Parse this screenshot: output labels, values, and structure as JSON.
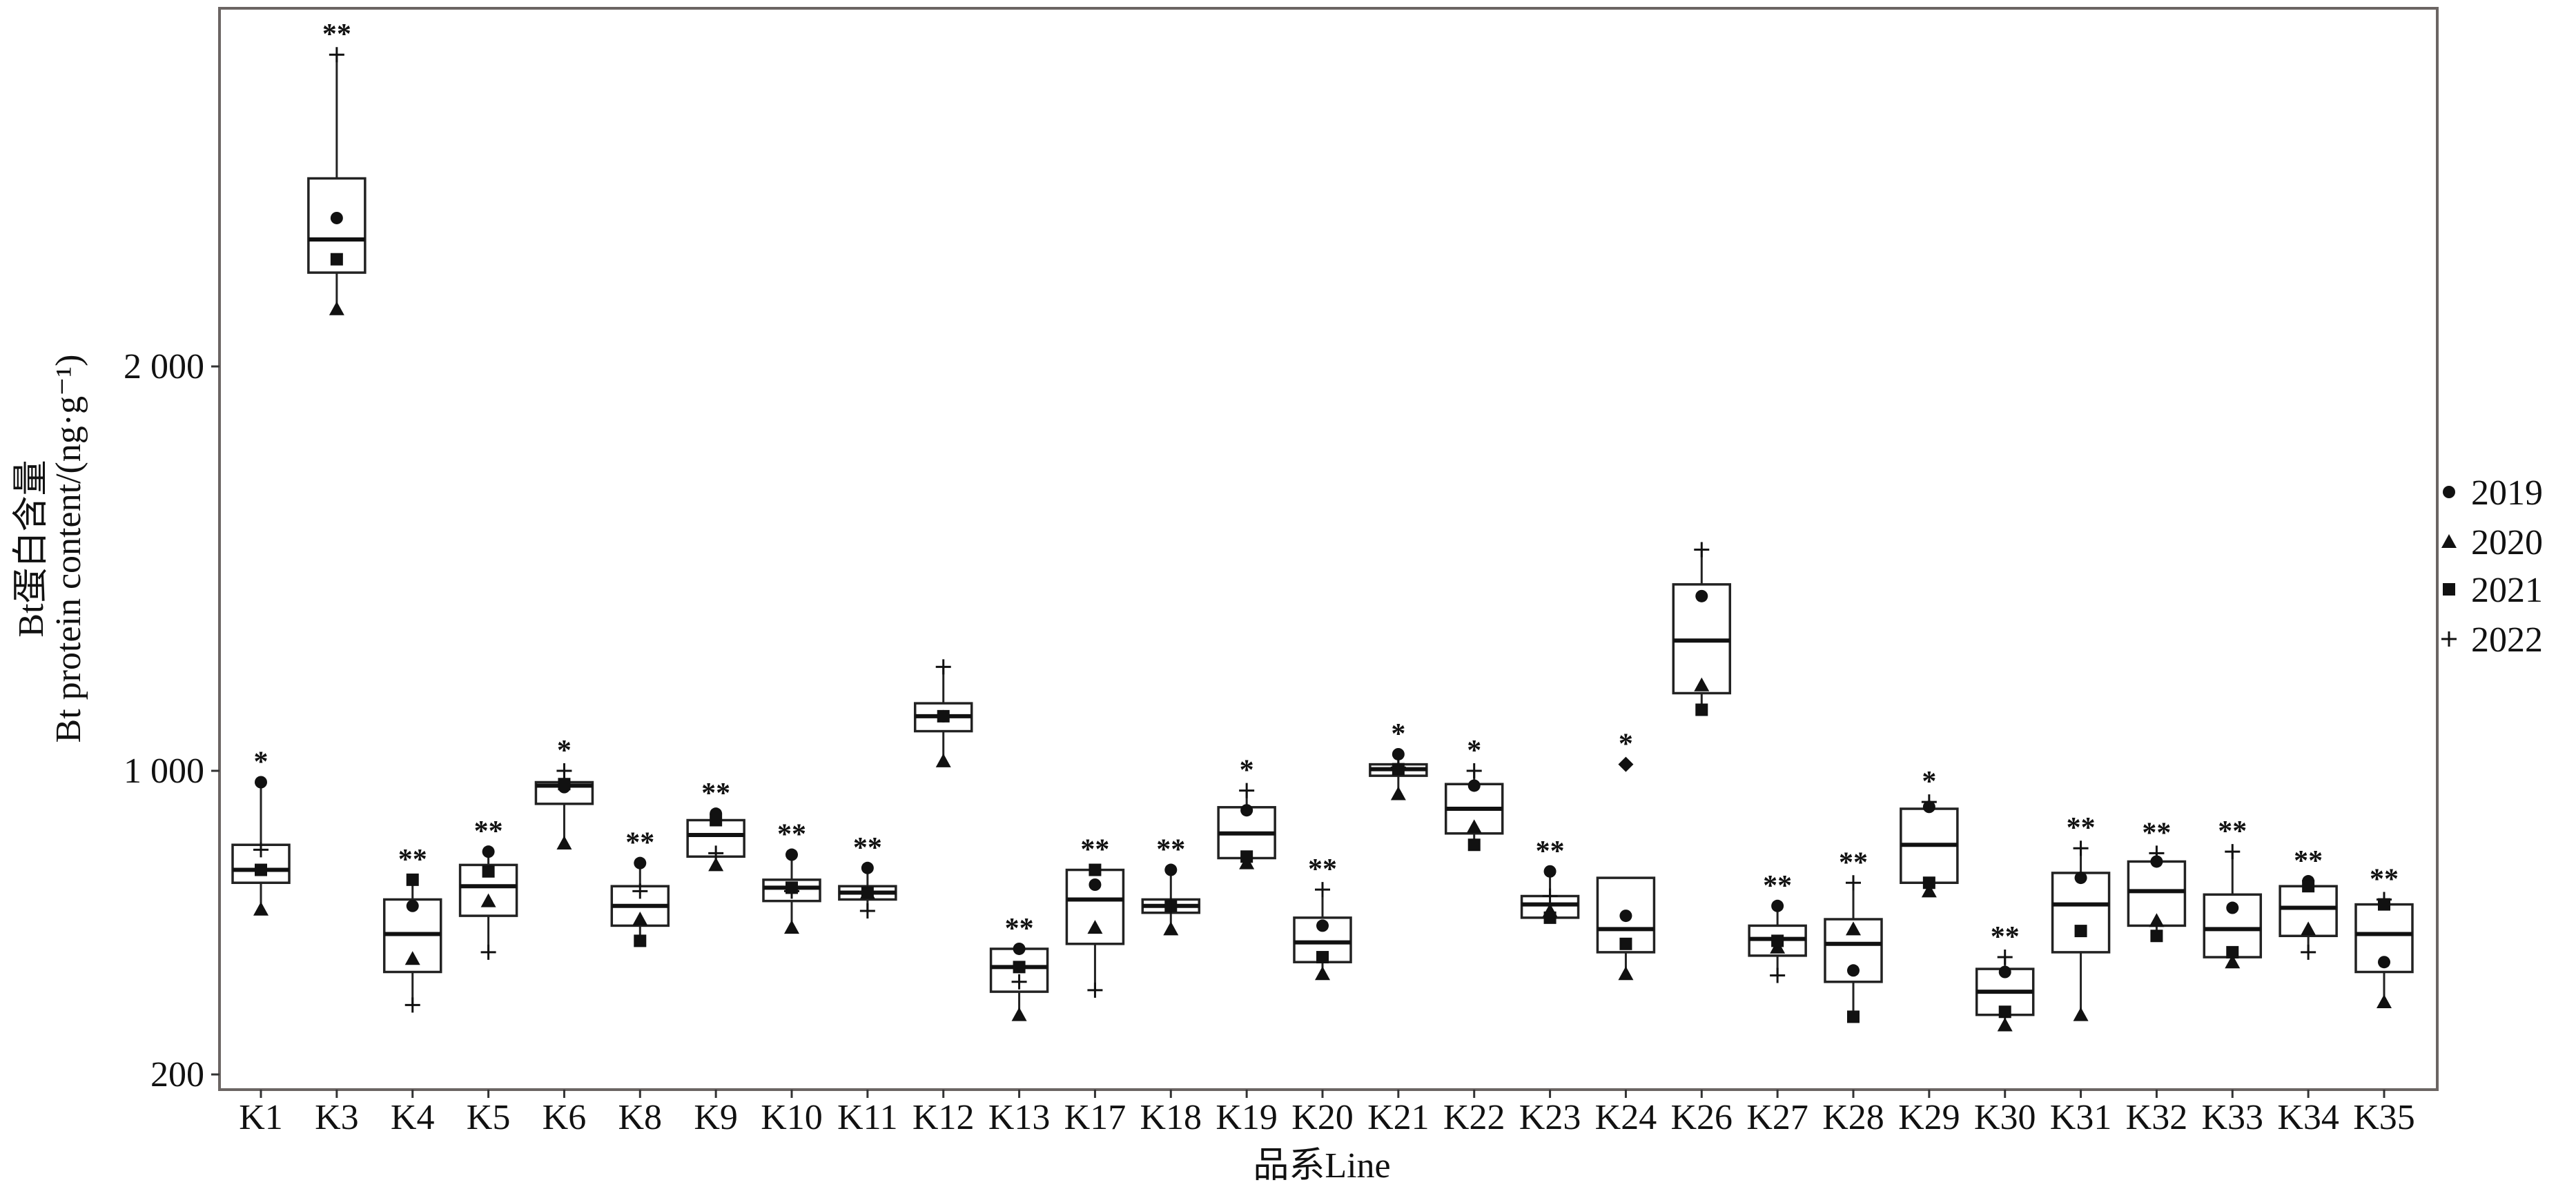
{
  "chart_data": {
    "type": "box",
    "xlabel": "品系Line",
    "ylabel_cn": "Bt蛋白含量",
    "ylabel_en": "Bt protein content/(ng·g⁻¹)",
    "yticks": [
      200,
      1000,
      2000
    ],
    "ytick_labels": [
      "200",
      "1 000",
      "2 000"
    ],
    "ylim": [
      160,
      2880
    ],
    "grid": false,
    "legend_placement": "right",
    "legend": [
      {
        "name": "2019",
        "shape": "circle"
      },
      {
        "name": "2020",
        "shape": "triangle"
      },
      {
        "name": "2021",
        "shape": "square"
      },
      {
        "name": "2022",
        "shape": "plus"
      }
    ],
    "lines": [
      {
        "name": "K1",
        "sig": "*",
        "box": [
          705,
          739,
          805
        ],
        "points": {
          "2019": 970,
          "2020": 635,
          "2021": 739,
          "2022": 792
        }
      },
      {
        "name": "K3",
        "sig": "**",
        "box": [
          2232,
          2314,
          2465
        ],
        "points": {
          "2019": 2367,
          "2020": 2142,
          "2021": 2265,
          "2022": 2771
        }
      },
      {
        "name": "K4",
        "sig": "**",
        "box": [
          470,
          570,
          661
        ],
        "points": {
          "2019": 644,
          "2020": 505,
          "2021": 713,
          "2022": 383
        }
      },
      {
        "name": "K5",
        "sig": "**",
        "box": [
          618,
          696,
          752
        ],
        "points": {
          "2019": 787,
          "2020": 657,
          "2021": 735,
          "2022": 522
        }
      },
      {
        "name": "K6",
        "sig": "*",
        "box": [
          913,
          961,
          970
        ],
        "points": {
          "2019": 957,
          "2020": 809,
          "2021": 965,
          "2022": 1000
        }
      },
      {
        "name": "K8",
        "sig": "**",
        "box": [
          592,
          644,
          696
        ],
        "points": {
          "2019": 757,
          "2020": 609,
          "2021": 552,
          "2022": 683
        }
      },
      {
        "name": "K9",
        "sig": "**",
        "box": [
          774,
          831,
          870
        ],
        "points": {
          "2019": 887,
          "2020": 752,
          "2021": 870,
          "2022": 783
        }
      },
      {
        "name": "K10",
        "sig": "**",
        "box": [
          657,
          692,
          713
        ],
        "points": {
          "2019": 779,
          "2020": 587,
          "2021": 692,
          "2022": 683
        }
      },
      {
        "name": "K11",
        "sig": "**",
        "box": [
          661,
          679,
          696
        ],
        "points": {
          "2019": 744,
          "2020": 679,
          "2021": 679,
          "2022": 631
        }
      },
      {
        "name": "K12",
        "sig": "",
        "box": [
          1098,
          1135,
          1167
        ],
        "points": {
          "2019": 1135,
          "2020": 1024,
          "2021": 1135,
          "2022": 1257
        }
      },
      {
        "name": "K13",
        "sig": "**",
        "box": [
          418,
          483,
          531
        ],
        "points": {
          "2019": 531,
          "2020": 357,
          "2021": 483,
          "2022": 444
        }
      },
      {
        "name": "K17",
        "sig": "**",
        "box": [
          544,
          661,
          739
        ],
        "points": {
          "2019": 700,
          "2020": 587,
          "2021": 739,
          "2022": 422
        }
      },
      {
        "name": "K18",
        "sig": "**",
        "box": [
          626,
          644,
          661
        ],
        "points": {
          "2019": 739,
          "2020": 583,
          "2021": 644,
          "2022": 644
        }
      },
      {
        "name": "K19",
        "sig": "*",
        "box": [
          770,
          835,
          904
        ],
        "points": {
          "2019": 896,
          "2020": 757,
          "2021": 774,
          "2022": 948
        }
      },
      {
        "name": "K20",
        "sig": "**",
        "box": [
          496,
          548,
          613
        ],
        "points": {
          "2019": 592,
          "2020": 465,
          "2021": 509,
          "2022": 687
        }
      },
      {
        "name": "K21",
        "sig": "*",
        "box": [
          987,
          1004,
          1016
        ],
        "points": {
          "2019": 1041,
          "2020": 939,
          "2021": 1004,
          "2022": 1008
        }
      },
      {
        "name": "K22",
        "sig": "*",
        "box": [
          835,
          900,
          965
        ],
        "points": {
          "2019": 961,
          "2020": 852,
          "2021": 805,
          "2022": 1000
        }
      },
      {
        "name": "K23",
        "sig": "**",
        "box": [
          613,
          648,
          670
        ],
        "points": {
          "2019": 735,
          "2020": 631,
          "2021": 613,
          "2022": 670
        }
      },
      {
        "name": "K24",
        "sig": "*",
        "box": [
          522,
          583,
          718
        ],
        "points": {
          "2019": 618,
          "2020": 465,
          "2021": 544
        },
        "outliers": [
          1016
        ]
      },
      {
        "name": "K26",
        "sig": "",
        "box": [
          1192,
          1322,
          1461
        ],
        "points": {
          "2019": 1432,
          "2020": 1212,
          "2021": 1151,
          "2022": 1547
        }
      },
      {
        "name": "K27",
        "sig": "**",
        "box": [
          513,
          557,
          592
        ],
        "points": {
          "2019": 644,
          "2020": 535,
          "2021": 552,
          "2022": 461
        }
      },
      {
        "name": "K28",
        "sig": "**",
        "box": [
          444,
          544,
          609
        ],
        "points": {
          "2019": 474,
          "2020": 583,
          "2021": 352,
          "2022": 705
        }
      },
      {
        "name": "K29",
        "sig": "*",
        "box": [
          705,
          805,
          900
        ],
        "points": {
          "2019": 905,
          "2020": 683,
          "2021": 705,
          "2022": 918
        }
      },
      {
        "name": "K30",
        "sig": "**",
        "box": [
          357,
          418,
          478
        ],
        "points": {
          "2019": 470,
          "2020": 330,
          "2021": 365,
          "2022": 509
        }
      },
      {
        "name": "K31",
        "sig": "**",
        "box": [
          522,
          648,
          731
        ],
        "points": {
          "2019": 718,
          "2020": 357,
          "2021": 578,
          "2022": 796
        }
      },
      {
        "name": "K32",
        "sig": "**",
        "box": [
          592,
          683,
          761
        ],
        "points": {
          "2019": 761,
          "2020": 605,
          "2021": 565,
          "2022": 783
        }
      },
      {
        "name": "K33",
        "sig": "**",
        "box": [
          509,
          583,
          674
        ],
        "points": {
          "2019": 639,
          "2020": 496,
          "2021": 522,
          "2022": 787
        }
      },
      {
        "name": "K34",
        "sig": "**",
        "box": [
          565,
          639,
          696
        ],
        "points": {
          "2019": 709,
          "2020": 583,
          "2021": 696,
          "2022": 522
        }
      },
      {
        "name": "K35",
        "sig": "**",
        "box": [
          470,
          570,
          648
        ],
        "points": {
          "2019": 496,
          "2020": 391,
          "2021": 648,
          "2022": 661
        }
      }
    ]
  }
}
